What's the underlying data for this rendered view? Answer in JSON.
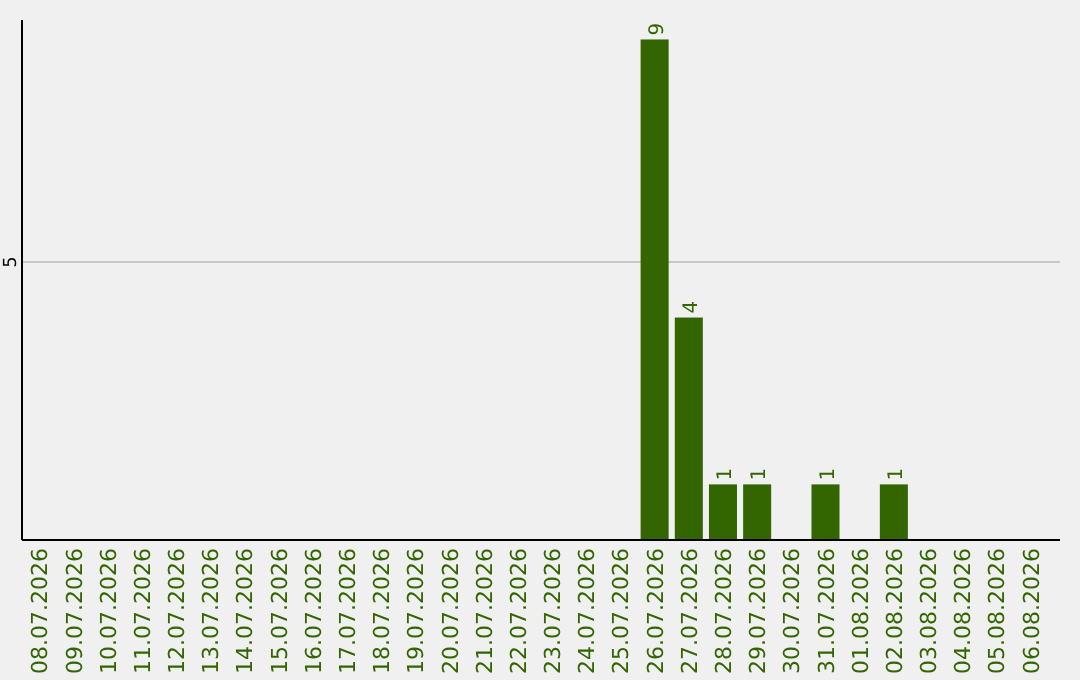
{
  "chart_data": {
    "type": "bar",
    "categories": [
      "08.07.2026",
      "09.07.2026",
      "10.07.2026",
      "11.07.2026",
      "12.07.2026",
      "13.07.2026",
      "14.07.2026",
      "15.07.2026",
      "16.07.2026",
      "17.07.2026",
      "18.07.2026",
      "19.07.2026",
      "20.07.2026",
      "21.07.2026",
      "22.07.2026",
      "23.07.2026",
      "24.07.2026",
      "25.07.2026",
      "26.07.2026",
      "27.07.2026",
      "28.07.2026",
      "29.07.2026",
      "30.07.2026",
      "31.07.2026",
      "01.08.2026",
      "02.08.2026",
      "03.08.2026",
      "04.08.2026",
      "05.08.2026",
      "06.08.2026"
    ],
    "values": [
      null,
      null,
      null,
      null,
      null,
      null,
      null,
      null,
      null,
      null,
      null,
      null,
      null,
      null,
      null,
      null,
      null,
      null,
      9,
      4,
      1,
      1,
      null,
      1,
      null,
      1,
      null,
      null,
      null,
      null
    ],
    "data_labels": true,
    "color": "#336600",
    "ylim": [
      0,
      9.35
    ],
    "ref_lines": [
      {
        "axis": "y",
        "value": 5,
        "label": "5",
        "color": "#c8c8c8"
      }
    ]
  }
}
